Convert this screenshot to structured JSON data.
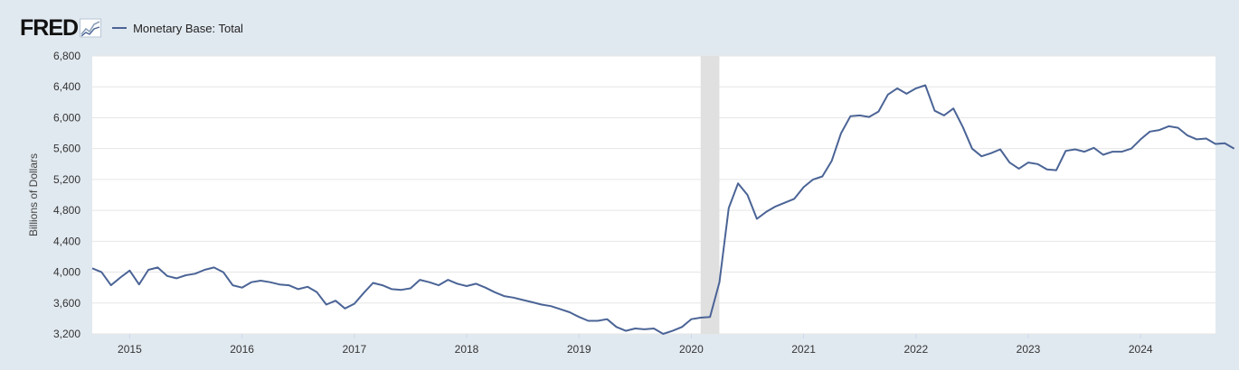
{
  "header": {
    "logo_text": "FRED",
    "legend_label": "Monetary Base: Total"
  },
  "colors": {
    "series": "#4b6496",
    "plot_background": "#ffffff",
    "frame_background": "#e1e9f0",
    "recession_shade": "#e0e0e0"
  },
  "chart_data": {
    "type": "line",
    "ylabel": "Billions of Dollars",
    "xlabel": "",
    "ylim": [
      3200,
      6800
    ],
    "yticks": [
      3200,
      3600,
      4000,
      4400,
      4800,
      5200,
      5600,
      6000,
      6400,
      6800
    ],
    "ytick_labels": [
      "3,200",
      "3,600",
      "4,000",
      "4,400",
      "4,800",
      "5,200",
      "5,600",
      "6,000",
      "6,400",
      "6,800"
    ],
    "xlim": [
      "2014-09-01",
      "2024-09-01"
    ],
    "xticks": [
      "2015",
      "2016",
      "2017",
      "2018",
      "2019",
      "2020",
      "2021",
      "2022",
      "2023",
      "2024"
    ],
    "grid": true,
    "legend_position": "top-left",
    "recessions": [
      {
        "start": "2020-02-01",
        "end": "2020-04-01"
      }
    ],
    "series": [
      {
        "name": "Monetary Base: Total",
        "frequency": "monthly",
        "start": "2014-09",
        "values": [
          4050,
          4000,
          3830,
          3930,
          4020,
          3840,
          4030,
          4060,
          3950,
          3920,
          3960,
          3980,
          4030,
          4060,
          4000,
          3830,
          3800,
          3870,
          3890,
          3870,
          3840,
          3830,
          3780,
          3810,
          3740,
          3580,
          3630,
          3530,
          3590,
          3730,
          3860,
          3830,
          3780,
          3770,
          3790,
          3900,
          3870,
          3830,
          3900,
          3850,
          3820,
          3850,
          3800,
          3740,
          3690,
          3670,
          3640,
          3610,
          3580,
          3560,
          3520,
          3480,
          3420,
          3370,
          3370,
          3390,
          3290,
          3240,
          3270,
          3260,
          3270,
          3200,
          3240,
          3290,
          3390,
          3410,
          3420,
          3870,
          4830,
          5150,
          5000,
          4690,
          4780,
          4850,
          4900,
          4950,
          5100,
          5200,
          5240,
          5440,
          5800,
          6020,
          6030,
          6010,
          6080,
          6300,
          6380,
          6310,
          6380,
          6420,
          6090,
          6030,
          6120,
          5880,
          5600,
          5500,
          5540,
          5590,
          5420,
          5340,
          5420,
          5400,
          5330,
          5320,
          5570,
          5590,
          5560,
          5610,
          5520,
          5560,
          5560,
          5600,
          5720,
          5820,
          5840,
          5890,
          5870,
          5770,
          5720,
          5730,
          5660,
          5670,
          5600
        ]
      }
    ]
  }
}
